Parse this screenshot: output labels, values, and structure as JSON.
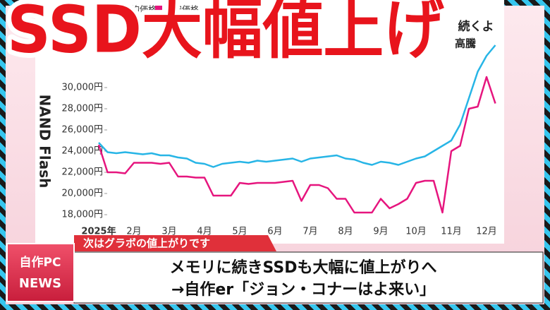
{
  "chart_data": {
    "type": "line",
    "title": "SSD大幅値上げ",
    "side_label": "NAND Flash",
    "annotations": [
      "続くよ",
      "高騰"
    ],
    "categories": [
      "2025年",
      null,
      null,
      null,
      "2月",
      null,
      null,
      null,
      "3月",
      null,
      null,
      null,
      "4月",
      null,
      null,
      null,
      "5月",
      null,
      null,
      null,
      "6月",
      null,
      null,
      null,
      "7月",
      null,
      null,
      null,
      "8月",
      null,
      null,
      null,
      "9月",
      null,
      null,
      null,
      "10月",
      null,
      null,
      null,
      "11月",
      null,
      null,
      null,
      "12月",
      null
    ],
    "series": [
      {
        "name": "平均価格",
        "color": "#27b5e6",
        "values": [
          24800,
          23900,
          23800,
          23900,
          23800,
          23700,
          23800,
          23600,
          23600,
          23400,
          23300,
          22900,
          22800,
          22500,
          22800,
          22900,
          23000,
          22900,
          23100,
          23000,
          23100,
          23200,
          23300,
          23000,
          23300,
          23400,
          23500,
          23600,
          23300,
          23200,
          22900,
          22700,
          23000,
          22900,
          22700,
          23000,
          23300,
          23500,
          24000,
          24500,
          25000,
          26500,
          29000,
          31500,
          33000,
          34000
        ]
      },
      {
        "name": "最安価格",
        "color": "#e6157e",
        "values": [
          24600,
          22000,
          22000,
          21900,
          22900,
          22900,
          22900,
          22800,
          22900,
          21600,
          21600,
          21500,
          21500,
          19800,
          19800,
          19800,
          21000,
          20900,
          21000,
          21000,
          21000,
          21100,
          21200,
          19300,
          20800,
          20800,
          20500,
          19500,
          19500,
          18200,
          18200,
          18200,
          19500,
          18600,
          19000,
          19500,
          21000,
          21200,
          21200,
          18200,
          24000,
          24500,
          28000,
          28200,
          31000,
          28500
        ]
      }
    ],
    "ylim": [
      17000,
      35000
    ],
    "yticks": [
      {
        "value": 18000,
        "label": "18,000円"
      },
      {
        "value": 20000,
        "label": "20,000円"
      },
      {
        "value": 22000,
        "label": "22,000円"
      },
      {
        "value": 24000,
        "label": "24,000円"
      },
      {
        "value": 26000,
        "label": "26,000円"
      },
      {
        "value": 28000,
        "label": "28,000円"
      },
      {
        "value": 30000,
        "label": "30,000円"
      }
    ],
    "grid": false
  },
  "banner": {
    "tag": "次はグラボの値上がりです",
    "badge_line1": "自作PC",
    "badge_line2": "NEWS",
    "headline_line1": "メモリに続きSSDも大幅に値上がりへ",
    "headline_line2": "→自作er「ジョン・コナーはよ来い」"
  }
}
